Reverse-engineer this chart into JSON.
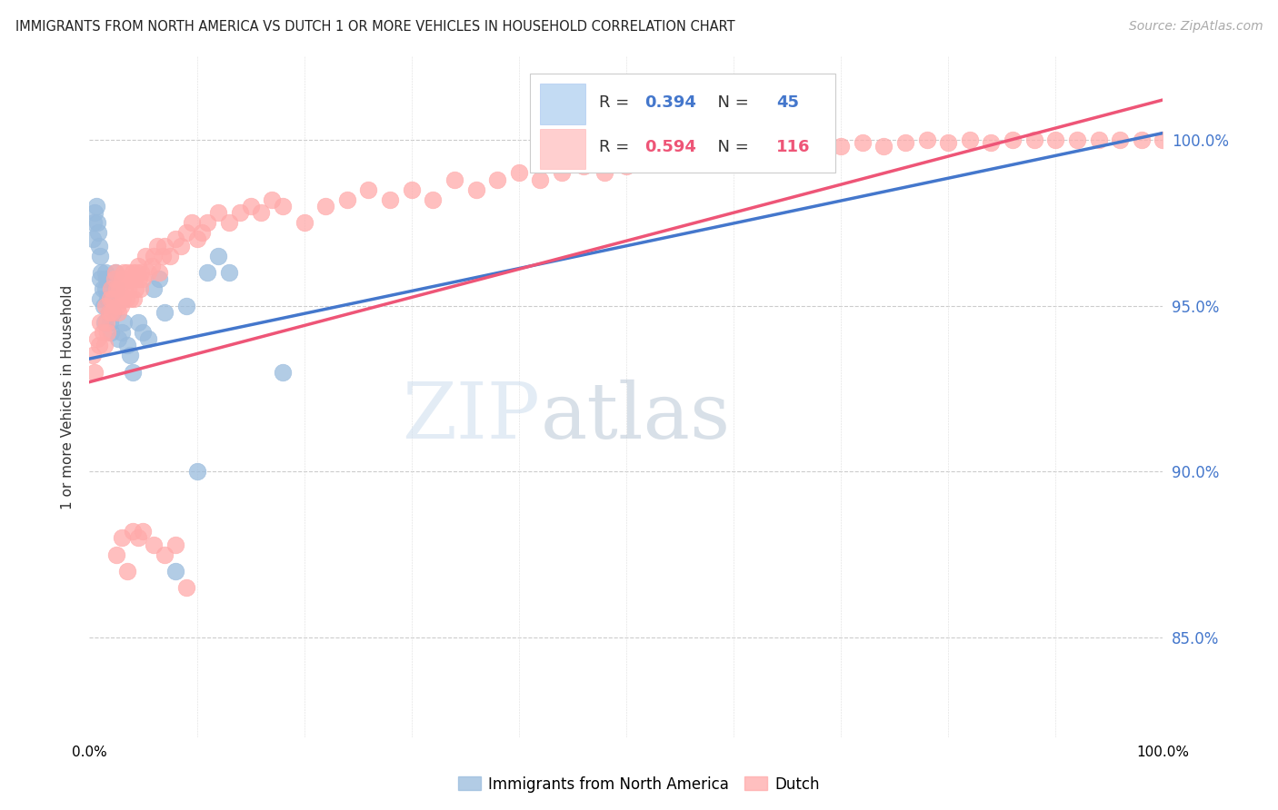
{
  "title": "IMMIGRANTS FROM NORTH AMERICA VS DUTCH 1 OR MORE VEHICLES IN HOUSEHOLD CORRELATION CHART",
  "source": "Source: ZipAtlas.com",
  "ylabel": "1 or more Vehicles in Household",
  "ytick_labels": [
    "100.0%",
    "95.0%",
    "90.0%",
    "85.0%"
  ],
  "ytick_values": [
    1.0,
    0.95,
    0.9,
    0.85
  ],
  "xlim": [
    0.0,
    1.0
  ],
  "ylim": [
    0.82,
    1.025
  ],
  "blue_R": 0.394,
  "blue_N": 45,
  "pink_R": 0.594,
  "pink_N": 116,
  "blue_color": "#99BBDD",
  "pink_color": "#FFAAAA",
  "trend_blue": "#4477CC",
  "trend_pink": "#EE5577",
  "legend_label_blue": "Immigrants from North America",
  "legend_label_pink": "Dutch",
  "watermark_zip": "ZIP",
  "watermark_atlas": "atlas",
  "blue_points_x": [
    0.003,
    0.004,
    0.005,
    0.006,
    0.007,
    0.008,
    0.009,
    0.01,
    0.01,
    0.01,
    0.011,
    0.012,
    0.013,
    0.014,
    0.015,
    0.015,
    0.016,
    0.017,
    0.018,
    0.019,
    0.02,
    0.02,
    0.022,
    0.024,
    0.025,
    0.027,
    0.03,
    0.032,
    0.035,
    0.038,
    0.04,
    0.045,
    0.05,
    0.055,
    0.06,
    0.065,
    0.07,
    0.08,
    0.09,
    0.1,
    0.11,
    0.12,
    0.13,
    0.18,
    0.55
  ],
  "blue_points_y": [
    0.97,
    0.975,
    0.978,
    0.98,
    0.975,
    0.972,
    0.968,
    0.965,
    0.958,
    0.952,
    0.96,
    0.955,
    0.95,
    0.945,
    0.96,
    0.955,
    0.958,
    0.952,
    0.948,
    0.945,
    0.95,
    0.942,
    0.948,
    0.96,
    0.955,
    0.94,
    0.942,
    0.945,
    0.938,
    0.935,
    0.93,
    0.945,
    0.942,
    0.94,
    0.955,
    0.958,
    0.948,
    0.87,
    0.95,
    0.9,
    0.96,
    0.965,
    0.96,
    0.93,
    1.0
  ],
  "pink_points_x": [
    0.003,
    0.005,
    0.007,
    0.009,
    0.01,
    0.012,
    0.014,
    0.015,
    0.016,
    0.017,
    0.018,
    0.019,
    0.02,
    0.021,
    0.022,
    0.023,
    0.024,
    0.025,
    0.026,
    0.027,
    0.028,
    0.029,
    0.03,
    0.031,
    0.032,
    0.033,
    0.034,
    0.035,
    0.036,
    0.037,
    0.038,
    0.039,
    0.04,
    0.041,
    0.042,
    0.043,
    0.044,
    0.045,
    0.046,
    0.047,
    0.048,
    0.05,
    0.052,
    0.055,
    0.058,
    0.06,
    0.063,
    0.065,
    0.068,
    0.07,
    0.075,
    0.08,
    0.085,
    0.09,
    0.095,
    0.1,
    0.105,
    0.11,
    0.12,
    0.13,
    0.14,
    0.15,
    0.16,
    0.17,
    0.18,
    0.2,
    0.22,
    0.24,
    0.26,
    0.28,
    0.3,
    0.32,
    0.34,
    0.36,
    0.38,
    0.4,
    0.42,
    0.44,
    0.46,
    0.48,
    0.5,
    0.52,
    0.54,
    0.56,
    0.58,
    0.6,
    0.62,
    0.64,
    0.66,
    0.68,
    0.7,
    0.72,
    0.74,
    0.76,
    0.78,
    0.8,
    0.82,
    0.84,
    0.86,
    0.88,
    0.9,
    0.92,
    0.94,
    0.96,
    0.98,
    1.0,
    0.025,
    0.03,
    0.035,
    0.04,
    0.045,
    0.05,
    0.06,
    0.07,
    0.08,
    0.09
  ],
  "pink_points_y": [
    0.935,
    0.93,
    0.94,
    0.938,
    0.945,
    0.942,
    0.938,
    0.95,
    0.945,
    0.942,
    0.948,
    0.952,
    0.955,
    0.948,
    0.952,
    0.958,
    0.96,
    0.955,
    0.95,
    0.948,
    0.955,
    0.95,
    0.958,
    0.952,
    0.96,
    0.955,
    0.952,
    0.96,
    0.955,
    0.958,
    0.952,
    0.958,
    0.96,
    0.952,
    0.958,
    0.955,
    0.96,
    0.962,
    0.958,
    0.955,
    0.96,
    0.958,
    0.965,
    0.96,
    0.962,
    0.965,
    0.968,
    0.96,
    0.965,
    0.968,
    0.965,
    0.97,
    0.968,
    0.972,
    0.975,
    0.97,
    0.972,
    0.975,
    0.978,
    0.975,
    0.978,
    0.98,
    0.978,
    0.982,
    0.98,
    0.975,
    0.98,
    0.982,
    0.985,
    0.982,
    0.985,
    0.982,
    0.988,
    0.985,
    0.988,
    0.99,
    0.988,
    0.99,
    0.992,
    0.99,
    0.992,
    0.993,
    0.995,
    0.993,
    0.995,
    0.997,
    0.995,
    0.997,
    0.998,
    0.997,
    0.998,
    0.999,
    0.998,
    0.999,
    1.0,
    0.999,
    1.0,
    0.999,
    1.0,
    1.0,
    1.0,
    1.0,
    1.0,
    1.0,
    1.0,
    1.0,
    0.875,
    0.88,
    0.87,
    0.882,
    0.88,
    0.882,
    0.878,
    0.875,
    0.878,
    0.865
  ]
}
